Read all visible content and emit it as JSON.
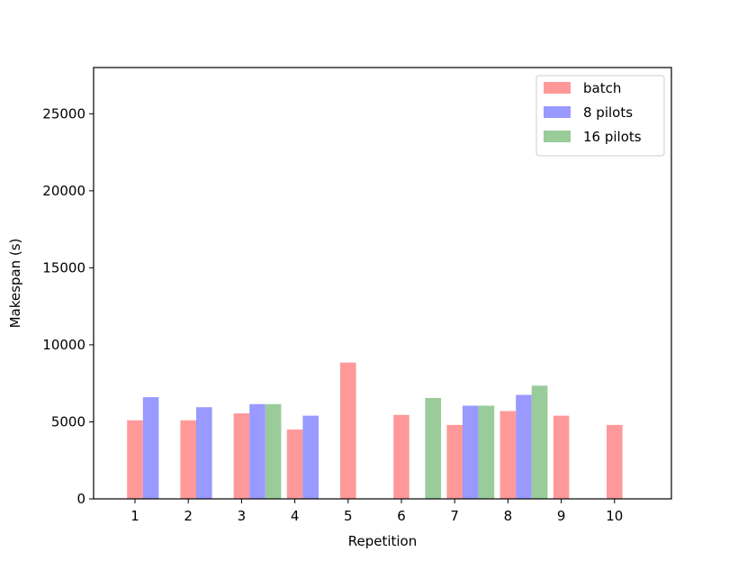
{
  "chart_data": {
    "type": "bar",
    "title": "",
    "xlabel": "Repetition",
    "ylabel": "Makespan (s)",
    "categories": [
      "1",
      "2",
      "3",
      "4",
      "5",
      "6",
      "7",
      "8",
      "9",
      "10"
    ],
    "ylim": [
      0,
      28000
    ],
    "yticks": [
      0,
      5000,
      10000,
      15000,
      20000,
      25000
    ],
    "grid": false,
    "legend_position": "top-right",
    "series": [
      {
        "name": "batch",
        "color": "#ff9999",
        "values": [
          5100,
          5100,
          5550,
          4500,
          8850,
          5450,
          4800,
          5700,
          5400,
          4800
        ]
      },
      {
        "name": "8 pilots",
        "color": "#9999ff",
        "values": [
          6600,
          5950,
          6150,
          5400,
          null,
          null,
          6050,
          6750,
          null,
          null
        ]
      },
      {
        "name": "16 pilots",
        "color": "#99cc99",
        "values": [
          null,
          null,
          6150,
          null,
          null,
          6550,
          6050,
          7350,
          null,
          null
        ]
      }
    ]
  }
}
